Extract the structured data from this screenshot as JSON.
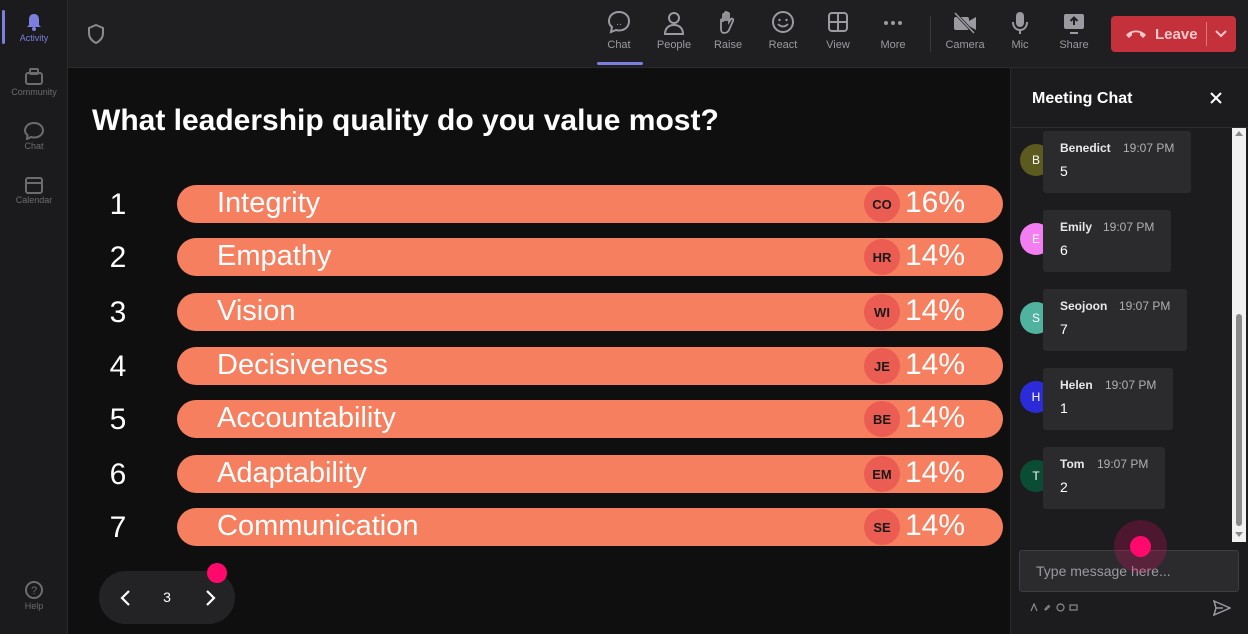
{
  "rail": {
    "items": [
      {
        "label": "Activity",
        "icon": "bell-icon"
      },
      {
        "label": "Community",
        "icon": "community-icon"
      },
      {
        "label": "Chat",
        "icon": "chat-icon"
      },
      {
        "label": "Calendar",
        "icon": "calendar-icon"
      },
      {
        "label": "Help",
        "icon": "help-icon"
      }
    ]
  },
  "toolbar": {
    "chat": "Chat",
    "people": "People",
    "raise": "Raise",
    "react": "React",
    "view": "View",
    "more": "More",
    "camera": "Camera",
    "mic": "Mic",
    "share": "Share",
    "leave": "Leave"
  },
  "poll": {
    "question": "What leadership quality do you value most?",
    "rows": [
      {
        "rank": "1",
        "label": "Integrity",
        "initials": "CO",
        "percent": "16%"
      },
      {
        "rank": "2",
        "label": "Empathy",
        "initials": "HR",
        "percent": "14%"
      },
      {
        "rank": "3",
        "label": "Vision",
        "initials": "WI",
        "percent": "14%"
      },
      {
        "rank": "4",
        "label": "Decisiveness",
        "initials": "JE",
        "percent": "14%"
      },
      {
        "rank": "5",
        "label": "Accountability",
        "initials": "BE",
        "percent": "14%"
      },
      {
        "rank": "6",
        "label": "Adaptability",
        "initials": "EM",
        "percent": "14%"
      },
      {
        "rank": "7",
        "label": "Communication",
        "initials": "SE",
        "percent": "14%"
      }
    ],
    "page": "3"
  },
  "chat": {
    "title": "Meeting Chat",
    "messages": [
      {
        "initial": "B",
        "name": "Benedict",
        "time": "19:07 PM",
        "text": "5",
        "color": "#5c5a1f"
      },
      {
        "initial": "E",
        "name": "Emily",
        "time": "19:07 PM",
        "text": "6",
        "color": "#f37ef3"
      },
      {
        "initial": "S",
        "name": "Seojoon",
        "time": "19:07 PM",
        "text": "7",
        "color": "#4fb3a0"
      },
      {
        "initial": "H",
        "name": "Helen",
        "time": "19:07 PM",
        "text": "1",
        "color": "#2b2bd8"
      },
      {
        "initial": "T",
        "name": "Tom",
        "time": "19:07 PM",
        "text": "2",
        "color": "#0b4d34"
      }
    ],
    "input_placeholder": "Type message here..."
  },
  "colors": {
    "accent": "#7b7fe0",
    "bar": "#f57f5f",
    "leave": "#c4313b",
    "highlight": "#ff0a6c"
  }
}
